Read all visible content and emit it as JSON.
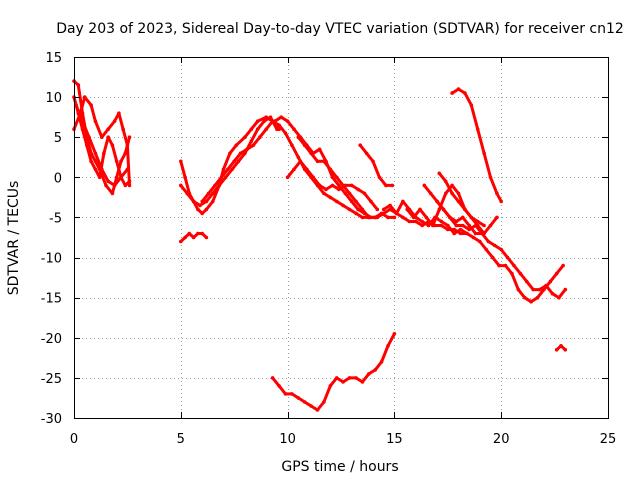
{
  "chart_data": {
    "type": "line",
    "title": "Day 203 of 2023, Sidereal Day-to-day VTEC variation (SDTVAR) for receiver cn12",
    "xlabel": "GPS time / hours",
    "ylabel": "SDTVAR / TECUs",
    "xlim": [
      0,
      25
    ],
    "ylim": [
      -30,
      15
    ],
    "xticks": [
      0,
      5,
      10,
      15,
      20,
      25
    ],
    "yticks": [
      15,
      10,
      5,
      0,
      -5,
      -10,
      -15,
      -20,
      -25,
      -30
    ],
    "grid": true,
    "color": "#ff0000",
    "series": [
      {
        "name": "s1",
        "x": [
          0.0,
          0.2,
          0.4,
          0.6,
          0.8,
          1.0,
          1.2,
          1.5,
          1.8,
          2.0,
          2.2,
          2.4,
          2.6
        ],
        "y": [
          12,
          11.5,
          8,
          5,
          3,
          2,
          1,
          -1,
          -2,
          0,
          2,
          3,
          5
        ]
      },
      {
        "name": "s2",
        "x": [
          0.0,
          0.2,
          0.4,
          0.6,
          0.8,
          1.0,
          1.2,
          1.4,
          1.6,
          1.8,
          2.0,
          2.2,
          2.4,
          2.6
        ],
        "y": [
          10,
          8,
          6,
          4,
          2,
          1,
          0,
          3,
          5,
          4,
          2,
          0,
          -1,
          -0.5
        ]
      },
      {
        "name": "s3",
        "x": [
          0.0,
          0.3,
          0.5,
          0.8,
          1.0,
          1.3,
          1.6,
          1.9,
          2.1,
          2.3,
          2.5,
          2.6
        ],
        "y": [
          6,
          8,
          10,
          9,
          7,
          5,
          6,
          7,
          8,
          6,
          4,
          -1
        ]
      },
      {
        "name": "s4",
        "x": [
          0.1,
          0.4,
          0.7,
          1.0,
          1.3,
          1.6,
          1.9,
          2.2,
          2.5
        ],
        "y": [
          9,
          7,
          5,
          3,
          1,
          -0.5,
          -1,
          0,
          1
        ]
      },
      {
        "name": "s5",
        "x": [
          5.0,
          5.2,
          5.4,
          5.6,
          5.8,
          6.0,
          6.2,
          6.5,
          6.8,
          7.0,
          7.3,
          7.6,
          8.0,
          8.3,
          8.6,
          9.0,
          9.3,
          9.6
        ],
        "y": [
          2,
          0,
          -2,
          -3,
          -4,
          -4.5,
          -4,
          -3,
          -1,
          1,
          3,
          4,
          5,
          6,
          7,
          7.5,
          7,
          6
        ]
      },
      {
        "name": "s6",
        "x": [
          5.0,
          5.3,
          5.6,
          5.9,
          6.2,
          6.5,
          6.8,
          7.1,
          7.4,
          7.7,
          8.0,
          8.3,
          8.6,
          8.9,
          9.2,
          9.5
        ],
        "y": [
          -1,
          -2,
          -3,
          -3.5,
          -3,
          -2,
          -1,
          0,
          1,
          2,
          3,
          4.5,
          6,
          7,
          7.5,
          6
        ]
      },
      {
        "name": "s7",
        "x": [
          5.0,
          5.2,
          5.4,
          5.6,
          5.8,
          6.0,
          6.2
        ],
        "y": [
          -8,
          -7.5,
          -7,
          -7.5,
          -7,
          -7,
          -7.5
        ]
      },
      {
        "name": "s8",
        "x": [
          6.0,
          6.3,
          6.6,
          6.9,
          7.2,
          7.5,
          7.8,
          8.1,
          8.4,
          8.7,
          9.0,
          9.3,
          9.6,
          9.9,
          10.2,
          10.5,
          10.8,
          11.1,
          11.4,
          11.7,
          12.0,
          12.3,
          12.6,
          12.9,
          13.2,
          13.5,
          13.8,
          14.1,
          14.4,
          14.7,
          15.0
        ],
        "y": [
          -3,
          -2,
          -1,
          0,
          1,
          2,
          3,
          3.5,
          4,
          5,
          6,
          7,
          6.5,
          5.5,
          4,
          2.5,
          1,
          0,
          -1,
          -2,
          -2.5,
          -3,
          -3.5,
          -4,
          -4.5,
          -5,
          -5,
          -5,
          -4.5,
          -5,
          -5
        ]
      },
      {
        "name": "s9",
        "x": [
          9.4,
          9.7,
          10.0,
          10.3,
          10.6,
          10.9,
          11.2,
          11.5,
          11.8,
          12.1,
          12.4,
          12.7,
          13.0,
          13.3,
          13.6,
          13.9,
          14.2,
          14.5,
          14.8,
          15.1,
          15.4,
          15.7,
          16.0,
          16.3,
          16.6,
          16.9,
          17.2,
          17.5,
          17.8,
          18.1,
          18.4
        ],
        "y": [
          7,
          7.5,
          7,
          6,
          5,
          4,
          3,
          3.5,
          2,
          0,
          -1,
          -2,
          -3,
          -4,
          -4.5,
          -5,
          -5,
          -4.5,
          -4,
          -4.5,
          -5,
          -5.5,
          -5.5,
          -6,
          -5.5,
          -6,
          -6,
          -6.5,
          -6.5,
          -7,
          -7
        ]
      },
      {
        "name": "s10",
        "x": [
          10.0,
          10.3,
          10.6,
          10.9,
          11.2,
          11.5,
          11.8,
          12.1,
          12.4,
          12.7,
          13.0,
          13.3,
          13.6,
          13.9,
          14.2
        ],
        "y": [
          0,
          1,
          2,
          1,
          0,
          -1,
          -1.5,
          -1,
          -1.5,
          -1,
          -1,
          -1.5,
          -2,
          -3,
          -4
        ]
      },
      {
        "name": "s11",
        "x": [
          10.5,
          10.8,
          11.1,
          11.4,
          11.7,
          12.0,
          12.3,
          12.6,
          12.9,
          13.2,
          13.5,
          13.8,
          14.1
        ],
        "y": [
          5,
          4,
          3,
          2,
          2,
          1,
          0,
          -1,
          -2,
          -3,
          -4,
          -5,
          -5
        ]
      },
      {
        "name": "s12",
        "x": [
          13.4,
          13.7,
          14.0,
          14.3,
          14.6,
          14.9
        ],
        "y": [
          4,
          3,
          2,
          0,
          -1,
          -1
        ]
      },
      {
        "name": "s13",
        "x": [
          14.5,
          14.8,
          15.1,
          15.4,
          15.7,
          16.0,
          16.3,
          16.6,
          16.9,
          17.2,
          17.5,
          17.8,
          18.1,
          18.4,
          18.7,
          19.0,
          19.3,
          19.6,
          19.9,
          20.2,
          20.5,
          20.8,
          21.1,
          21.4,
          21.7,
          22.0,
          22.3,
          22.6,
          22.9
        ],
        "y": [
          -4,
          -3.5,
          -4.5,
          -3,
          -4,
          -5,
          -5.5,
          -6,
          -5,
          -5.5,
          -6,
          -7,
          -6.5,
          -7,
          -7.5,
          -8,
          -9,
          -10,
          -11,
          -11,
          -12,
          -14,
          -15,
          -15.5,
          -15,
          -14,
          -13,
          -12,
          -11
        ]
      },
      {
        "name": "s14",
        "x": [
          15.6,
          15.9,
          16.2,
          16.5,
          16.8,
          17.1,
          17.4,
          17.7,
          18.0,
          18.3,
          18.6,
          18.9,
          19.2,
          19.5,
          19.8
        ],
        "y": [
          -4,
          -5,
          -4,
          -5,
          -6,
          -4,
          -2,
          -1,
          -2,
          -4,
          -5,
          -6,
          -7,
          -6,
          -5
        ]
      },
      {
        "name": "s15",
        "x": [
          16.4,
          16.7,
          17.0,
          17.3,
          17.6,
          17.9,
          18.2,
          18.5,
          18.8,
          19.1,
          19.4,
          19.7,
          20.0,
          20.3,
          20.6,
          20.9,
          21.2,
          21.5,
          21.8,
          22.1,
          22.4,
          22.7,
          23.0
        ],
        "y": [
          -1,
          -2,
          -3,
          -4,
          -5,
          -5.5,
          -5,
          -6,
          -7,
          -7,
          -8,
          -8.5,
          -9,
          -10,
          -11,
          -12,
          -13,
          -14,
          -14,
          -13.5,
          -14.5,
          -15,
          -14
        ]
      },
      {
        "name": "s16",
        "x": [
          17.1,
          17.4,
          17.7,
          18.0,
          18.3,
          18.6,
          18.9,
          19.2
        ],
        "y": [
          0.5,
          -0.5,
          -2,
          -3,
          -4,
          -5,
          -5.5,
          -6
        ]
      },
      {
        "name": "s17",
        "x": [
          17.0,
          17.3,
          17.6,
          17.9,
          18.2,
          18.5,
          18.8,
          19.1
        ],
        "y": [
          -3,
          -4,
          -5,
          -6,
          -6,
          -6.5,
          -6,
          -7
        ]
      },
      {
        "name": "s18",
        "x": [
          17.7,
          18.0,
          18.3,
          18.6,
          18.9,
          19.2,
          19.5,
          19.8,
          20.0
        ],
        "y": [
          10.5,
          11,
          10.5,
          9,
          6,
          3,
          0,
          -2,
          -3
        ]
      },
      {
        "name": "s19",
        "x": [
          9.3,
          9.6,
          9.9,
          10.2,
          10.5,
          10.8,
          11.1,
          11.4,
          11.7,
          12.0,
          12.3,
          12.6,
          12.9,
          13.2,
          13.5,
          13.8,
          14.1,
          14.4,
          14.7,
          15.0
        ],
        "y": [
          -25,
          -26,
          -27,
          -27,
          -27.5,
          -28,
          -28.5,
          -29,
          -28,
          -26,
          -25,
          -25.5,
          -25,
          -25,
          -25.5,
          -24.5,
          -24,
          -23,
          -21,
          -19.5
        ]
      },
      {
        "name": "s20",
        "x": [
          22.6,
          22.8,
          23.0
        ],
        "y": [
          -21.5,
          -21,
          -21.5
        ]
      }
    ]
  }
}
